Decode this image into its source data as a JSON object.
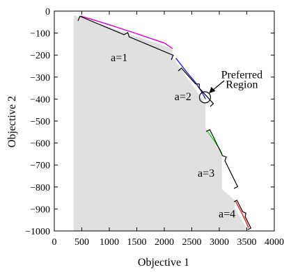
{
  "chart_data": {
    "type": "area",
    "title": "",
    "xlabel": "Objective 1",
    "ylabel": "Objective 2",
    "xlim": [
      0,
      4000
    ],
    "ylim": [
      -1000,
      0
    ],
    "xticks": [
      0,
      500,
      1000,
      1500,
      2000,
      2500,
      3000,
      3500,
      4000
    ],
    "yticks": [
      0,
      -100,
      -200,
      -300,
      -400,
      -500,
      -600,
      -700,
      -800,
      -900,
      -1000
    ],
    "grid": false,
    "fill_color": "#e0e0e0",
    "region": {
      "x": [
        350,
        2150,
        2150,
        2750,
        2750,
        3050,
        3050,
        3280,
        3280,
        3530,
        3530,
        350
      ],
      "y": [
        -18,
        -170,
        -210,
        -420,
        -530,
        -660,
        -810,
        -860,
        -895,
        -1000,
        -1000,
        -1000
      ]
    },
    "series": [
      {
        "color": "#d400d4",
        "x": [
          480,
          1000,
          1500,
          2000,
          2150
        ],
        "y": [
          -22,
          -62,
          -103,
          -145,
          -170
        ]
      },
      {
        "color": "#2020e0",
        "x": [
          2210,
          2400,
          2560,
          2680,
          2750
        ],
        "y": [
          -214,
          -275,
          -322,
          -367,
          -400
        ]
      },
      {
        "color": "#20e020",
        "x": [
          2780,
          2900,
          3000,
          3050
        ],
        "y": [
          -545,
          -588,
          -625,
          -648
        ]
      },
      {
        "color": "#ee2020",
        "x": [
          3290,
          3400,
          3480,
          3530
        ],
        "y": [
          -862,
          -915,
          -955,
          -985
        ]
      }
    ],
    "annotations": [
      {
        "text": "a=1",
        "x": 1180,
        "y": -228
      },
      {
        "text": "a=2",
        "x": 2340,
        "y": -405
      },
      {
        "text": "a=3",
        "x": 2760,
        "y": -753
      },
      {
        "text": "a=4",
        "x": 3140,
        "y": -938
      },
      {
        "text": "Preferred",
        "x": 3410,
        "y": -306
      },
      {
        "text": "Region",
        "x": 3410,
        "y": -349
      }
    ],
    "preferred_region": {
      "x": 2740,
      "y": -392
    }
  }
}
